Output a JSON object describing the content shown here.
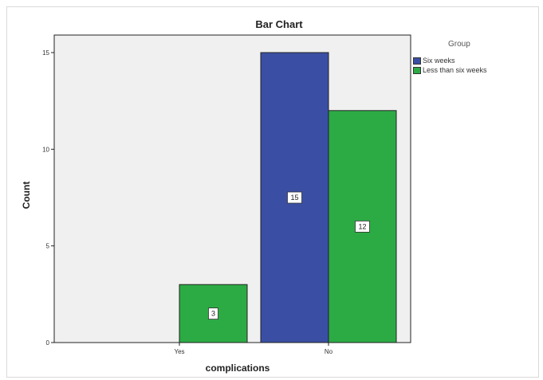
{
  "chart_data": {
    "type": "bar",
    "title": "Bar Chart",
    "xlabel": "complications",
    "ylabel": "Count",
    "categories": [
      "Yes",
      "No"
    ],
    "ylim": [
      0,
      15
    ],
    "yticks": [
      0,
      5,
      10,
      15
    ],
    "grid": false,
    "legend": {
      "title": "Group",
      "placement": "right"
    },
    "series": [
      {
        "name": "Six weeks",
        "color": "#3a4fa3",
        "values": [
          0,
          15
        ],
        "labels": [
          "",
          "15"
        ]
      },
      {
        "name": "Less than six weeks",
        "color": "#2cab44",
        "values": [
          3,
          12
        ],
        "labels": [
          "3",
          "12"
        ]
      }
    ]
  }
}
